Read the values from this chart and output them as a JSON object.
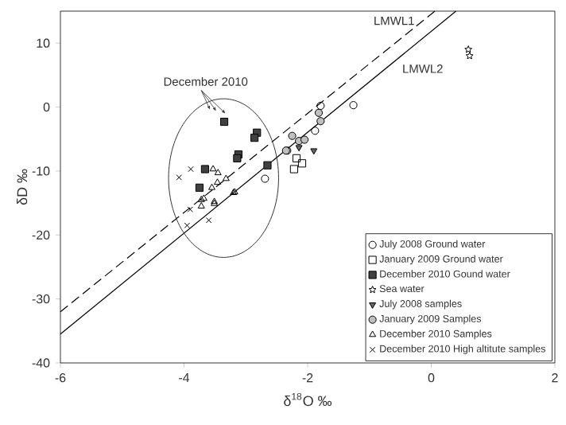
{
  "chart_data": {
    "type": "scatter",
    "xlabel": "δ$^{18}$O ‰",
    "ylabel": "δD ‰",
    "xlim": [
      -6,
      2
    ],
    "ylim": [
      -40,
      15
    ],
    "xticks": [
      -6,
      -4,
      -2,
      0,
      2
    ],
    "yticks": [
      -40,
      -30,
      -20,
      -10,
      0,
      10
    ],
    "grid": false,
    "legend": "bottom right",
    "annotations": [
      "December 2010"
    ],
    "series": [
      {
        "name": "July 2008 Ground water",
        "marker": "circle",
        "color": "#000000",
        "x": [
          -1.26,
          -1.79,
          -2.69,
          -1.88,
          -2.33
        ],
        "values": [
          0.3,
          0.2,
          -11.2,
          -3.7,
          -6.8
        ]
      },
      {
        "name": "January 2009 Ground water",
        "marker": "square",
        "color": "#000000",
        "x": [
          -2.09,
          -2.22,
          -2.18
        ],
        "values": [
          -8.8,
          -9.7,
          -8.0
        ]
      },
      {
        "name": "December 2010 Gound water",
        "marker": "square",
        "color": "#000000",
        "x": [
          -3.35,
          -2.82,
          -2.86,
          -3.12,
          -3.14,
          -2.65,
          -3.66,
          -3.75
        ],
        "values": [
          -2.3,
          -4.0,
          -4.8,
          -7.4,
          -8.0,
          -9.1,
          -9.7,
          -12.6
        ]
      },
      {
        "name": "Sea water",
        "marker": "star",
        "color": "#000000",
        "x": [
          0.6,
          0.62
        ],
        "values": [
          9.0,
          8.0
        ]
      },
      {
        "name": "July 2008 samples",
        "marker": "triangle",
        "color": "#000000",
        "x": [
          -1.9,
          -2.14
        ],
        "values": [
          -6.8,
          -6.3
        ]
      },
      {
        "name": "January 2009 Samples",
        "marker": "circle",
        "color": "#000000",
        "x": [
          -1.82,
          -1.79,
          -2.25,
          -2.35,
          -2.14,
          -2.05
        ],
        "values": [
          -0.9,
          -2.2,
          -4.5,
          -6.8,
          -5.3,
          -5.1
        ]
      },
      {
        "name": "December 2010 Samples",
        "marker": "triangle",
        "color": "#000000",
        "x": [
          -3.53,
          -3.45,
          -3.32,
          -3.46,
          -3.55,
          -3.18,
          -3.68,
          -3.51,
          -3.72,
          -3.2,
          -3.72,
          -3.51
        ],
        "values": [
          -9.7,
          -10.3,
          -11.2,
          -11.8,
          -12.6,
          -13.3,
          -14.3,
          -15.1,
          -15.5,
          -13.4,
          -14.5,
          -14.8
        ]
      },
      {
        "name": "December 2010  High altitute samples",
        "marker": "cross",
        "color": "#000000",
        "x": [
          -4.08,
          -3.89,
          -3.9,
          -3.95,
          -3.6
        ],
        "values": [
          -11.0,
          -9.7,
          -16.0,
          -18.5,
          -17.7
        ]
      },
      {
        "name": "LMWL1",
        "type": "line",
        "line_style": "dashed",
        "marker": "none",
        "color": "#000000",
        "x": [
          -6,
          0.06
        ],
        "values": [
          -32.0,
          15
        ]
      },
      {
        "name": "LMWL2",
        "type": "line",
        "line_style": "solid",
        "marker": "none",
        "color": "#000000",
        "x": [
          -6,
          0.4
        ],
        "values": [
          -35.5,
          15
        ]
      }
    ]
  }
}
